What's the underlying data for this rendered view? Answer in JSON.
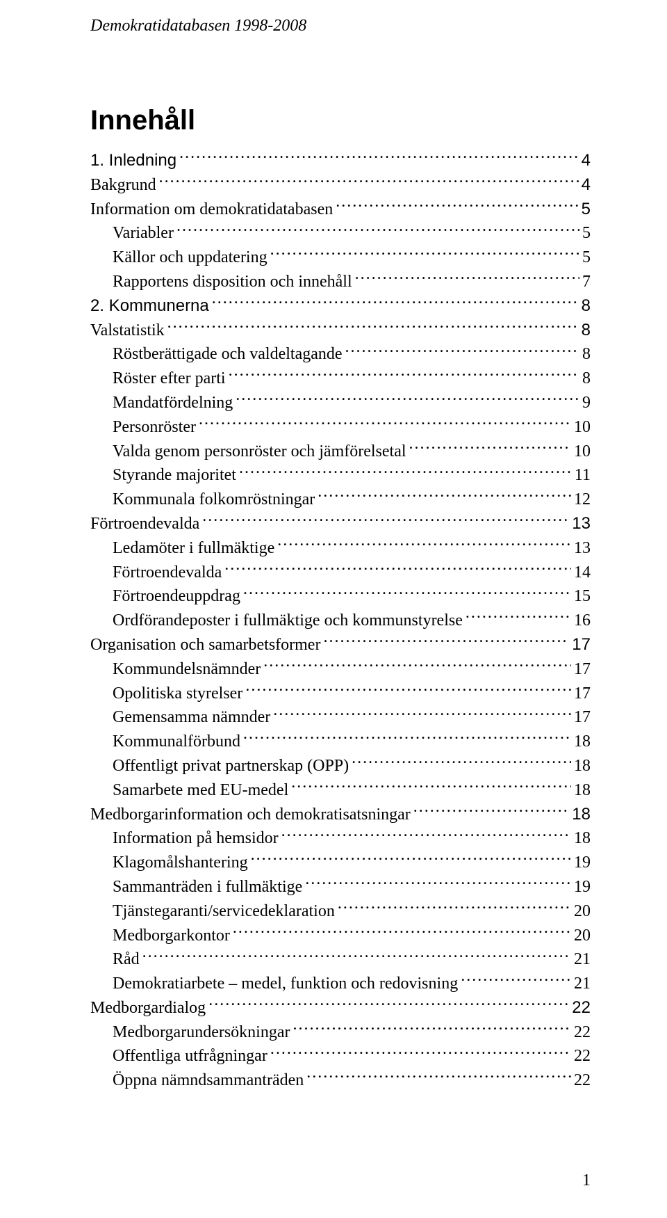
{
  "running_head": "Demokratidatabasen 1998-2008",
  "title": "Innehåll",
  "page_number": "1",
  "toc": [
    {
      "label": "1. Inledning",
      "page": "4",
      "indent": 0,
      "label_sans": true,
      "page_sans": true,
      "leading_space": false
    },
    {
      "label": "Bakgrund",
      "page": "4",
      "indent": 0,
      "label_sans": false,
      "page_sans": true,
      "leading_space": false
    },
    {
      "label": "Information om demokratidatabasen",
      "page": "5",
      "indent": 0,
      "label_sans": false,
      "page_sans": true,
      "leading_space": false
    },
    {
      "label": "Variabler",
      "page": "5",
      "indent": 1,
      "label_sans": false,
      "page_sans": false,
      "leading_space": false
    },
    {
      "label": "Källor och uppdatering",
      "page": "5",
      "indent": 1,
      "label_sans": false,
      "page_sans": false,
      "leading_space": false
    },
    {
      "label": "Rapportens disposition och innehåll",
      "page": "7",
      "indent": 1,
      "label_sans": false,
      "page_sans": false,
      "leading_space": false
    },
    {
      "label": "2. Kommunerna",
      "page": "8",
      "indent": 0,
      "label_sans": true,
      "page_sans": true,
      "leading_space": false
    },
    {
      "label": "Valstatistik",
      "page": "8",
      "indent": 0,
      "label_sans": false,
      "page_sans": true,
      "leading_space": false
    },
    {
      "label": "Röstberättigade och valdeltagande",
      "page": "8",
      "indent": 1,
      "label_sans": false,
      "page_sans": false,
      "leading_space": false
    },
    {
      "label": "Röster efter parti",
      "page": "8",
      "indent": 1,
      "label_sans": false,
      "page_sans": false,
      "leading_space": false
    },
    {
      "label": "Mandatfördelning",
      "page": "9",
      "indent": 1,
      "label_sans": false,
      "page_sans": false,
      "leading_space": false
    },
    {
      "label": "Personröster",
      "page": "10",
      "indent": 1,
      "label_sans": false,
      "page_sans": false,
      "leading_space": false
    },
    {
      "label": "Valda genom personröster och jämförelsetal",
      "page": "10",
      "indent": 1,
      "label_sans": false,
      "page_sans": false,
      "leading_space": false
    },
    {
      "label": "Styrande majoritet",
      "page": "11",
      "indent": 1,
      "label_sans": false,
      "page_sans": false,
      "leading_space": false
    },
    {
      "label": "Kommunala folkomröstningar",
      "page": "12",
      "indent": 1,
      "label_sans": false,
      "page_sans": false,
      "leading_space": false
    },
    {
      "label": "Förtroendevalda",
      "page": "13",
      "indent": 0,
      "label_sans": false,
      "page_sans": true,
      "leading_space": false
    },
    {
      "label": "Ledamöter i fullmäktige",
      "page": "13",
      "indent": 1,
      "label_sans": false,
      "page_sans": false,
      "leading_space": false
    },
    {
      "label": "Förtroendevalda",
      "page": "14",
      "indent": 1,
      "label_sans": false,
      "page_sans": false,
      "leading_space": false
    },
    {
      "label": "Förtroendeuppdrag",
      "page": "15",
      "indent": 1,
      "label_sans": false,
      "page_sans": false,
      "leading_space": false
    },
    {
      "label": "Ordförandeposter i fullmäktige och kommunstyrelse",
      "page": "16",
      "indent": 1,
      "label_sans": false,
      "page_sans": false,
      "leading_space": false
    },
    {
      "label": "Organisation och samarbetsformer",
      "page": "17",
      "indent": 0,
      "label_sans": false,
      "page_sans": true,
      "leading_space": false
    },
    {
      "label": "Kommundelsnämnder",
      "page": "17",
      "indent": 1,
      "label_sans": false,
      "page_sans": false,
      "leading_space": false
    },
    {
      "label": "Opolitiska styrelser",
      "page": "17",
      "indent": 1,
      "label_sans": false,
      "page_sans": false,
      "leading_space": false
    },
    {
      "label": "Gemensamma nämnder",
      "page": "17",
      "indent": 1,
      "label_sans": false,
      "page_sans": false,
      "leading_space": false
    },
    {
      "label": "Kommunalförbund",
      "page": "18",
      "indent": 1,
      "label_sans": false,
      "page_sans": false,
      "leading_space": false
    },
    {
      "label": "Offentligt privat partnerskap (OPP)",
      "page": "18",
      "indent": 1,
      "label_sans": false,
      "page_sans": false,
      "leading_space": false
    },
    {
      "label": "Samarbete med EU-medel",
      "page": "18",
      "indent": 1,
      "label_sans": false,
      "page_sans": false,
      "leading_space": false
    },
    {
      "label": "Medborgarinformation och demokratisatsningar",
      "page": "18",
      "indent": 0,
      "label_sans": false,
      "page_sans": true,
      "leading_space": false
    },
    {
      "label": "Information på hemsidor",
      "page": "18",
      "indent": 1,
      "label_sans": false,
      "page_sans": false,
      "leading_space": false
    },
    {
      "label": "Klagomålshantering",
      "page": "19",
      "indent": 1,
      "label_sans": false,
      "page_sans": false,
      "leading_space": false
    },
    {
      "label": "Sammanträden i fullmäktige",
      "page": "19",
      "indent": 1,
      "label_sans": false,
      "page_sans": false,
      "leading_space": false
    },
    {
      "label": "Tjänstegaranti/servicedeklaration",
      "page": "20",
      "indent": 1,
      "label_sans": false,
      "page_sans": false,
      "leading_space": false
    },
    {
      "label": "Medborgarkontor",
      "page": "20",
      "indent": 1,
      "label_sans": false,
      "page_sans": false,
      "leading_space": false
    },
    {
      "label": "Råd",
      "page": "21",
      "indent": 1,
      "label_sans": false,
      "page_sans": false,
      "leading_space": false
    },
    {
      "label": "Demokratiarbete – medel, funktion och redovisning",
      "page": "21",
      "indent": 1,
      "label_sans": false,
      "page_sans": false,
      "leading_space": false
    },
    {
      "label": "Medborgardialog",
      "page": "22",
      "indent": 0,
      "label_sans": false,
      "page_sans": true,
      "leading_space": false
    },
    {
      "label": "Medborgarundersökningar",
      "page": "22",
      "indent": 1,
      "label_sans": false,
      "page_sans": false,
      "leading_space": false
    },
    {
      "label": "Offentliga utfrågningar",
      "page": "22",
      "indent": 1,
      "label_sans": false,
      "page_sans": false,
      "leading_space": false
    },
    {
      "label": "Öppna nämndsammanträden",
      "page": "22",
      "indent": 1,
      "label_sans": false,
      "page_sans": false,
      "leading_space": false
    }
  ]
}
